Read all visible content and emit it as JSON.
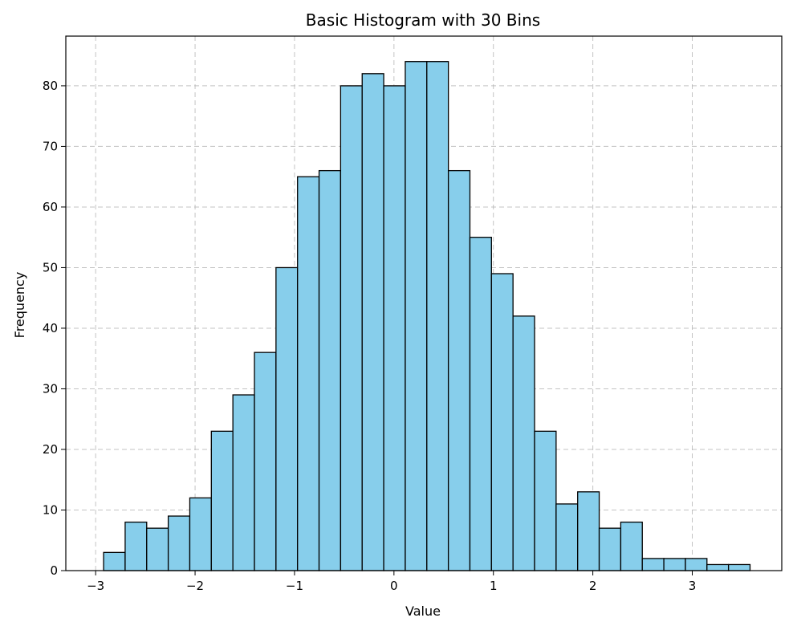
{
  "chart_data": {
    "type": "bar",
    "title": "Basic Histogram with 30 Bins",
    "xlabel": "Value",
    "ylabel": "Frequency",
    "xlim": [
      -3.3,
      3.9
    ],
    "ylim": [
      0,
      88.2
    ],
    "xticks": [
      {
        "value": -3,
        "label": "−3"
      },
      {
        "value": -2,
        "label": "−2"
      },
      {
        "value": -1,
        "label": "−1"
      },
      {
        "value": 0,
        "label": "0"
      },
      {
        "value": 1,
        "label": "1"
      },
      {
        "value": 2,
        "label": "2"
      },
      {
        "value": 3,
        "label": "3"
      }
    ],
    "yticks": [
      {
        "value": 0,
        "label": "0"
      },
      {
        "value": 10,
        "label": "10"
      },
      {
        "value": 20,
        "label": "20"
      },
      {
        "value": 30,
        "label": "30"
      },
      {
        "value": 40,
        "label": "40"
      },
      {
        "value": 50,
        "label": "50"
      },
      {
        "value": 60,
        "label": "60"
      },
      {
        "value": 70,
        "label": "70"
      },
      {
        "value": 80,
        "label": "80"
      }
    ],
    "grid": true,
    "bar_color": "#87CEEB",
    "edge_color": "#000000",
    "bin_start": -2.92,
    "bin_width": 0.2167,
    "counts": [
      3,
      8,
      7,
      9,
      12,
      23,
      29,
      36,
      50,
      65,
      66,
      80,
      82,
      80,
      84,
      84,
      66,
      55,
      49,
      42,
      23,
      11,
      13,
      7,
      8,
      2,
      2,
      2,
      1,
      1
    ]
  }
}
